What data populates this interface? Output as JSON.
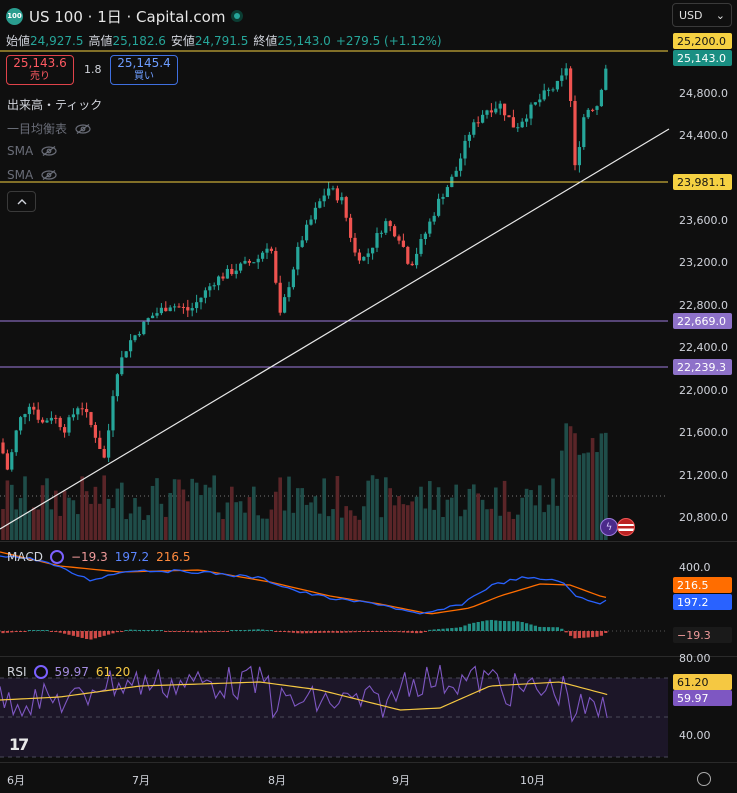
{
  "header": {
    "symbol_icon": "100",
    "title": "US 100 · 1日 · Capital.com",
    "currency": "USD"
  },
  "ohlc": {
    "open_label": "始値",
    "open": "24,927.5",
    "high_label": "高値",
    "high": "25,182.6",
    "low_label": "安値",
    "low": "24,791.5",
    "close_label": "終値",
    "close": "25,143.0",
    "change": "+279.5 (+1.12%)"
  },
  "trade": {
    "sell_price": "25,143.6",
    "sell_label": "売り",
    "spread": "1.8",
    "buy_price": "25,145.4",
    "buy_label": "買い"
  },
  "indicators": [
    {
      "label": "出来高・ティック"
    },
    {
      "label": "一目均衡表"
    },
    {
      "label": "SMA"
    },
    {
      "label": "SMA"
    }
  ],
  "price_axis": {
    "ticks": [
      "24,800.0",
      "24,400.0",
      "23,600.0",
      "23,200.0",
      "22,800.0",
      "22,400.0",
      "22,000.0",
      "21,600.0",
      "21,200.0",
      "20,800.0"
    ],
    "badges": {
      "high_line": "25,200.0",
      "last": "25,143.0",
      "support_top": "23,981.1",
      "level_1": "22,669.0",
      "level_2": "22,239.3"
    }
  },
  "macd": {
    "label": "MACD",
    "hist": "−19.3",
    "macd": "197.2",
    "signal": "216.5",
    "axis_top": "400.0",
    "badge_signal": "216.5",
    "badge_macd": "197.2",
    "badge_hist": "−19.3"
  },
  "rsi": {
    "label": "RSI",
    "value": "59.97",
    "ma": "61.20",
    "axis_80": "80.00",
    "axis_40": "40.00",
    "badge_ma": "61.20",
    "badge_value": "59.97"
  },
  "x_axis": [
    "6月",
    "7月",
    "8月",
    "9月",
    "10月"
  ],
  "colors": {
    "up": "#26a69a",
    "down": "#ef5350",
    "macd": "#2962ff",
    "signal": "#ff6d00",
    "rsi": "#7e57c2",
    "rsi_ma": "#f5c842",
    "level": "#9c7bdc",
    "yellow": "#f5d142"
  },
  "chart_data": {
    "type": "candlestick",
    "ohlc_last": {
      "open": 24927.5,
      "high": 25182.6,
      "low": 24791.5,
      "close": 25143.0
    },
    "horizontal_levels": [
      25200.0,
      23981.1,
      22669.0,
      22239.3
    ],
    "ylim": [
      20650,
      25300
    ],
    "trend_start": [
      0,
      20650
    ],
    "trend_end": [
      669,
      24420
    ]
  }
}
